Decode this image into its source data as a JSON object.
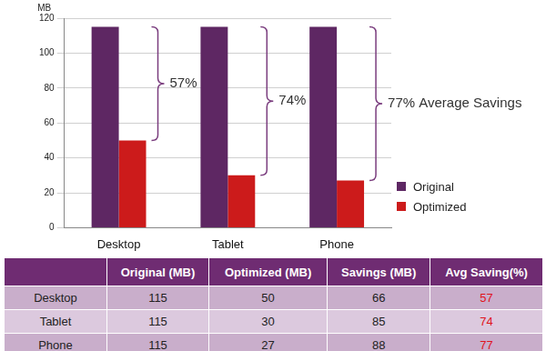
{
  "chart_data": {
    "type": "bar",
    "y_label": "MB",
    "categories": [
      "Desktop",
      "Tablet",
      "Phone"
    ],
    "series": [
      {
        "name": "Original",
        "color": "#5e2763",
        "values": [
          115,
          115,
          115
        ]
      },
      {
        "name": "Optimized",
        "color": "#cc1b1b",
        "values": [
          50,
          30,
          27
        ]
      }
    ],
    "ylim": [
      0,
      120
    ],
    "yticks": [
      0,
      20,
      40,
      60,
      80,
      100,
      120
    ],
    "grid": true,
    "legend": "right",
    "annotations": [
      {
        "category": "Desktop",
        "text": "57%"
      },
      {
        "category": "Tablet",
        "text": "74%"
      },
      {
        "category": "Phone",
        "text": "77% Average Savings"
      }
    ]
  },
  "table": {
    "columns": [
      "Original (MB)",
      "Optimized (MB)",
      "Savings (MB)",
      "Avg Saving(%)"
    ],
    "rows": [
      {
        "label": "Desktop",
        "values": [
          115,
          50,
          66,
          57
        ]
      },
      {
        "label": "Tablet",
        "values": [
          115,
          30,
          85,
          74
        ]
      },
      {
        "label": "Phone",
        "values": [
          115,
          27,
          88,
          77
        ]
      }
    ]
  }
}
